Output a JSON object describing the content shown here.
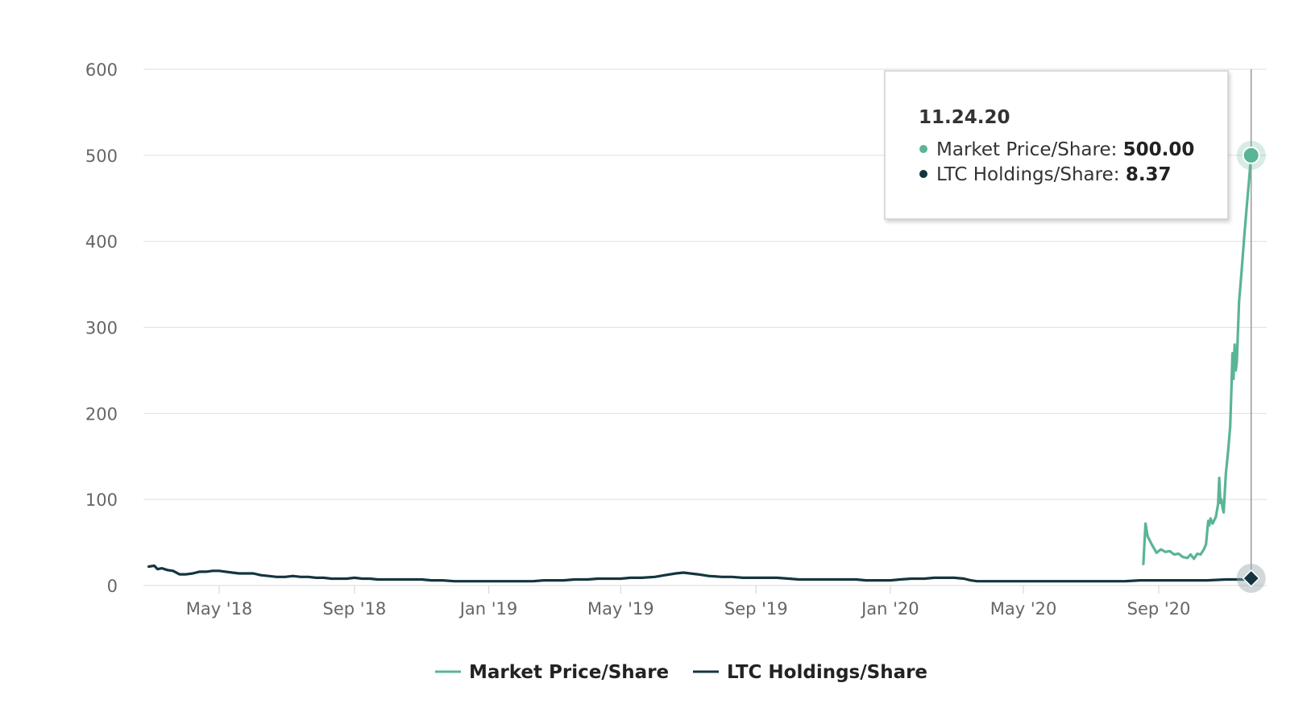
{
  "colors": {
    "market": "#5ab496",
    "ltc": "#14353f",
    "grid": "#e3e3e3",
    "axis_text": "#666666",
    "crosshair": "#999999"
  },
  "legend": {
    "items": [
      {
        "name": "Market Price/Share",
        "color": "#5ab496"
      },
      {
        "name": "LTC Holdings/Share",
        "color": "#14353f"
      }
    ]
  },
  "tooltip": {
    "date": "11.24.20",
    "rows": [
      {
        "label": "Market Price/Share: ",
        "value": "500.00",
        "color": "#5ab496",
        "marker": "circle"
      },
      {
        "label": "LTC Holdings/Share: ",
        "value": "8.37",
        "color": "#14353f",
        "marker": "diamond"
      }
    ]
  },
  "chart_data": {
    "type": "line",
    "title": "",
    "xlabel": "",
    "ylabel": "",
    "ylim": [
      0,
      600
    ],
    "xlim": [
      "2018-02-20",
      "2020-11-28"
    ],
    "grid": true,
    "legend_position": "bottom-center",
    "y_ticks": [
      0,
      100,
      200,
      300,
      400,
      500,
      600
    ],
    "x_ticks": [
      {
        "date": "2018-05-01",
        "label": "May '18"
      },
      {
        "date": "2018-09-01",
        "label": "Sep '18"
      },
      {
        "date": "2019-01-01",
        "label": "Jan '19"
      },
      {
        "date": "2019-05-01",
        "label": "May '19"
      },
      {
        "date": "2019-09-01",
        "label": "Sep '19"
      },
      {
        "date": "2020-01-01",
        "label": "Jan '20"
      },
      {
        "date": "2020-05-01",
        "label": "May '20"
      },
      {
        "date": "2020-09-01",
        "label": "Sep '20"
      }
    ],
    "series": [
      {
        "name": "Market Price/Share",
        "color": "#5ab496",
        "points": [
          [
            "2020-08-18",
            25
          ],
          [
            "2020-08-20",
            72
          ],
          [
            "2020-08-22",
            57
          ],
          [
            "2020-08-26",
            47
          ],
          [
            "2020-08-30",
            38
          ],
          [
            "2020-09-03",
            42
          ],
          [
            "2020-09-07",
            39
          ],
          [
            "2020-09-11",
            40
          ],
          [
            "2020-09-15",
            36
          ],
          [
            "2020-09-19",
            37
          ],
          [
            "2020-09-23",
            33
          ],
          [
            "2020-09-27",
            32
          ],
          [
            "2020-09-30",
            36
          ],
          [
            "2020-10-03",
            31
          ],
          [
            "2020-10-06",
            37
          ],
          [
            "2020-10-09",
            36
          ],
          [
            "2020-10-12",
            42
          ],
          [
            "2020-10-14",
            48
          ],
          [
            "2020-10-16",
            75
          ],
          [
            "2020-10-17",
            70
          ],
          [
            "2020-10-18",
            78
          ],
          [
            "2020-10-20",
            72
          ],
          [
            "2020-10-23",
            80
          ],
          [
            "2020-10-25",
            95
          ],
          [
            "2020-10-26",
            125
          ],
          [
            "2020-10-27",
            96
          ],
          [
            "2020-10-28",
            100
          ],
          [
            "2020-10-29",
            90
          ],
          [
            "2020-10-30",
            85
          ],
          [
            "2020-11-01",
            130
          ],
          [
            "2020-11-03",
            155
          ],
          [
            "2020-11-05",
            185
          ],
          [
            "2020-11-06",
            225
          ],
          [
            "2020-11-07",
            270
          ],
          [
            "2020-11-08",
            240
          ],
          [
            "2020-11-09",
            280
          ],
          [
            "2020-11-10",
            250
          ],
          [
            "2020-11-11",
            260
          ],
          [
            "2020-11-13",
            330
          ],
          [
            "2020-11-15",
            360
          ],
          [
            "2020-11-18",
            410
          ],
          [
            "2020-11-20",
            440
          ],
          [
            "2020-11-22",
            470
          ],
          [
            "2020-11-24",
            500
          ]
        ]
      },
      {
        "name": "LTC Holdings/Share",
        "color": "#14353f",
        "points": [
          [
            "2018-02-26",
            22
          ],
          [
            "2018-03-03",
            23
          ],
          [
            "2018-03-06",
            19
          ],
          [
            "2018-03-10",
            20
          ],
          [
            "2018-03-15",
            18
          ],
          [
            "2018-03-20",
            17
          ],
          [
            "2018-03-26",
            13
          ],
          [
            "2018-04-01",
            13
          ],
          [
            "2018-04-07",
            14
          ],
          [
            "2018-04-13",
            16
          ],
          [
            "2018-04-19",
            16
          ],
          [
            "2018-04-25",
            17
          ],
          [
            "2018-05-01",
            17
          ],
          [
            "2018-05-07",
            16
          ],
          [
            "2018-05-13",
            15
          ],
          [
            "2018-05-19",
            14
          ],
          [
            "2018-05-25",
            14
          ],
          [
            "2018-06-01",
            14
          ],
          [
            "2018-06-08",
            12
          ],
          [
            "2018-06-15",
            11
          ],
          [
            "2018-06-22",
            10
          ],
          [
            "2018-06-30",
            10
          ],
          [
            "2018-07-07",
            11
          ],
          [
            "2018-07-14",
            10
          ],
          [
            "2018-07-21",
            10
          ],
          [
            "2018-07-28",
            9
          ],
          [
            "2018-08-04",
            9
          ],
          [
            "2018-08-11",
            8
          ],
          [
            "2018-08-18",
            8
          ],
          [
            "2018-08-25",
            8
          ],
          [
            "2018-09-01",
            9
          ],
          [
            "2018-09-08",
            8
          ],
          [
            "2018-09-15",
            8
          ],
          [
            "2018-09-22",
            7
          ],
          [
            "2018-10-01",
            7
          ],
          [
            "2018-10-10",
            7
          ],
          [
            "2018-10-20",
            7
          ],
          [
            "2018-11-01",
            7
          ],
          [
            "2018-11-10",
            6
          ],
          [
            "2018-11-20",
            6
          ],
          [
            "2018-12-01",
            5
          ],
          [
            "2018-12-10",
            5
          ],
          [
            "2018-12-20",
            5
          ],
          [
            "2019-01-01",
            5
          ],
          [
            "2019-01-10",
            5
          ],
          [
            "2019-01-20",
            5
          ],
          [
            "2019-02-01",
            5
          ],
          [
            "2019-02-10",
            5
          ],
          [
            "2019-02-20",
            6
          ],
          [
            "2019-03-01",
            6
          ],
          [
            "2019-03-10",
            6
          ],
          [
            "2019-03-20",
            7
          ],
          [
            "2019-04-01",
            7
          ],
          [
            "2019-04-10",
            8
          ],
          [
            "2019-04-20",
            8
          ],
          [
            "2019-05-01",
            8
          ],
          [
            "2019-05-10",
            9
          ],
          [
            "2019-05-20",
            9
          ],
          [
            "2019-06-01",
            10
          ],
          [
            "2019-06-10",
            12
          ],
          [
            "2019-06-20",
            14
          ],
          [
            "2019-06-27",
            15
          ],
          [
            "2019-07-03",
            14
          ],
          [
            "2019-07-10",
            13
          ],
          [
            "2019-07-20",
            11
          ],
          [
            "2019-08-01",
            10
          ],
          [
            "2019-08-10",
            10
          ],
          [
            "2019-08-20",
            9
          ],
          [
            "2019-09-01",
            9
          ],
          [
            "2019-09-10",
            9
          ],
          [
            "2019-09-20",
            9
          ],
          [
            "2019-10-01",
            8
          ],
          [
            "2019-10-10",
            7
          ],
          [
            "2019-10-20",
            7
          ],
          [
            "2019-11-01",
            7
          ],
          [
            "2019-11-10",
            7
          ],
          [
            "2019-11-20",
            7
          ],
          [
            "2019-12-01",
            7
          ],
          [
            "2019-12-10",
            6
          ],
          [
            "2019-12-20",
            6
          ],
          [
            "2020-01-01",
            6
          ],
          [
            "2020-01-10",
            7
          ],
          [
            "2020-01-20",
            8
          ],
          [
            "2020-02-01",
            8
          ],
          [
            "2020-02-10",
            9
          ],
          [
            "2020-02-20",
            9
          ],
          [
            "2020-02-28",
            9
          ],
          [
            "2020-03-08",
            8
          ],
          [
            "2020-03-14",
            6
          ],
          [
            "2020-03-20",
            5
          ],
          [
            "2020-04-01",
            5
          ],
          [
            "2020-04-15",
            5
          ],
          [
            "2020-05-01",
            5
          ],
          [
            "2020-05-15",
            5
          ],
          [
            "2020-06-01",
            5
          ],
          [
            "2020-06-15",
            5
          ],
          [
            "2020-07-01",
            5
          ],
          [
            "2020-07-15",
            5
          ],
          [
            "2020-08-01",
            5
          ],
          [
            "2020-08-15",
            6
          ],
          [
            "2020-09-01",
            6
          ],
          [
            "2020-09-15",
            6
          ],
          [
            "2020-10-01",
            6
          ],
          [
            "2020-10-15",
            6
          ],
          [
            "2020-11-01",
            7
          ],
          [
            "2020-11-10",
            7
          ],
          [
            "2020-11-17",
            7
          ],
          [
            "2020-11-24",
            8.37
          ]
        ]
      }
    ]
  }
}
